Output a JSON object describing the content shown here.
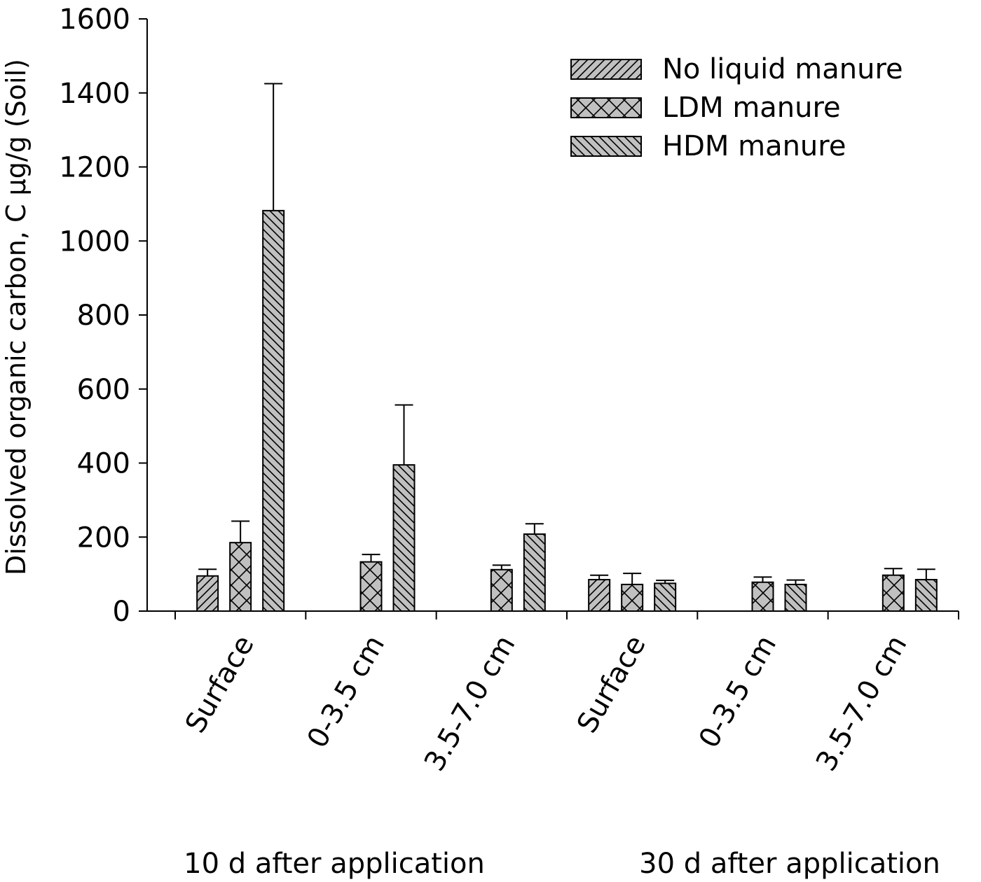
{
  "chart_data": {
    "type": "bar",
    "title": "",
    "ylabel": "Dissolved organic carbon, C µg/g (Soil)",
    "xlabel": "",
    "ylim": [
      0,
      1600
    ],
    "yticks": [
      0,
      200,
      400,
      600,
      800,
      1000,
      1200,
      1400,
      1600
    ],
    "legend_position": "top-right",
    "categories": [
      "Surface",
      "0-3.5 cm",
      "3.5-7.0 cm",
      "Surface",
      "0-3.5 cm",
      "3.5-7.0 cm"
    ],
    "group_labels": [
      "10 d after application",
      "30 d after application"
    ],
    "series": [
      {
        "name": "No liquid manure",
        "pattern": "forward-diagonal",
        "values": [
          95,
          null,
          null,
          85,
          null,
          null
        ],
        "errors": [
          18,
          null,
          null,
          12,
          null,
          null
        ]
      },
      {
        "name": "LDM manure",
        "pattern": "crosshatch",
        "values": [
          185,
          133,
          112,
          72,
          78,
          97
        ],
        "errors": [
          58,
          20,
          12,
          30,
          14,
          18
        ]
      },
      {
        "name": "HDM manure",
        "pattern": "back-diagonal",
        "values": [
          1082,
          395,
          208,
          75,
          72,
          85
        ],
        "errors": [
          343,
          162,
          28,
          8,
          12,
          28
        ]
      }
    ],
    "colors": {
      "bar_fill": "#c0c0c0",
      "stroke": "#000000"
    }
  }
}
